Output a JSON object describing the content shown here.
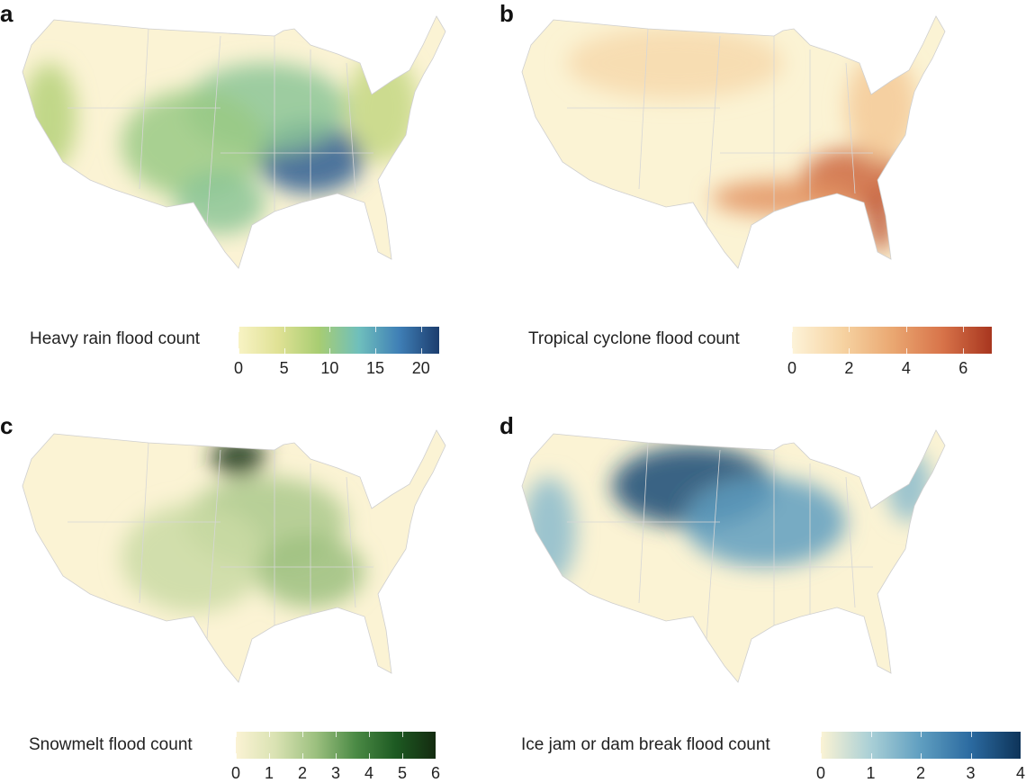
{
  "panels": [
    {
      "letter": "a",
      "legend_title": "Heavy rain flood count",
      "max": 22,
      "ticks": [
        0,
        5,
        10,
        15,
        20
      ],
      "colors": [
        "#f8f3c4",
        "#dfe194",
        "#a8cd72",
        "#6fbfbc",
        "#3f7fb6",
        "#1c3d6e"
      ],
      "base": "#fbf3d4",
      "hotspots": [
        {
          "region": "ohio-valley",
          "level": 0.9
        },
        {
          "region": "midwest",
          "level": 0.5
        },
        {
          "region": "plains",
          "level": 0.45
        },
        {
          "region": "west-coast",
          "level": 0.35
        },
        {
          "region": "east",
          "level": 0.3
        },
        {
          "region": "texas",
          "level": 0.5
        }
      ]
    },
    {
      "letter": "b",
      "legend_title": "Tropical cyclone flood count",
      "max": 7,
      "ticks": [
        0,
        2,
        4,
        6
      ],
      "colors": [
        "#fdf3d8",
        "#f6d3a2",
        "#eaa872",
        "#d8744a",
        "#a8361f"
      ],
      "base": "#fbf3d4",
      "hotspots": [
        {
          "region": "southeast",
          "level": 0.8
        },
        {
          "region": "florida",
          "level": 0.9
        },
        {
          "region": "gulf",
          "level": 0.6
        },
        {
          "region": "east",
          "level": 0.3
        },
        {
          "region": "north",
          "level": 0.2
        }
      ]
    },
    {
      "letter": "c",
      "legend_title": "Snowmelt flood count",
      "max": 6,
      "ticks": [
        0,
        1,
        2,
        3,
        4,
        5,
        6
      ],
      "colors": [
        "#fbf3d4",
        "#d9e2b2",
        "#9cc07f",
        "#4b8a45",
        "#1d5a22",
        "#142b10"
      ],
      "base": "#fbf3d4",
      "hotspots": [
        {
          "region": "red-river",
          "level": 0.95
        },
        {
          "region": "midwest",
          "level": 0.35
        },
        {
          "region": "plains",
          "level": 0.25
        },
        {
          "region": "ohio-valley",
          "level": 0.4
        }
      ]
    },
    {
      "letter": "d",
      "legend_title": "Ice jam or dam break flood count",
      "max": 4,
      "ticks": [
        0,
        1,
        2,
        3,
        4
      ],
      "colors": [
        "#fbf3d4",
        "#a9cfd6",
        "#5f9ec0",
        "#2b6aa0",
        "#0e3459"
      ],
      "base": "#fbf3d4",
      "hotspots": [
        {
          "region": "northern-plains",
          "level": 0.9
        },
        {
          "region": "midwest",
          "level": 0.5
        },
        {
          "region": "northeast",
          "level": 0.35
        },
        {
          "region": "west-coast",
          "level": 0.35
        }
      ]
    }
  ]
}
